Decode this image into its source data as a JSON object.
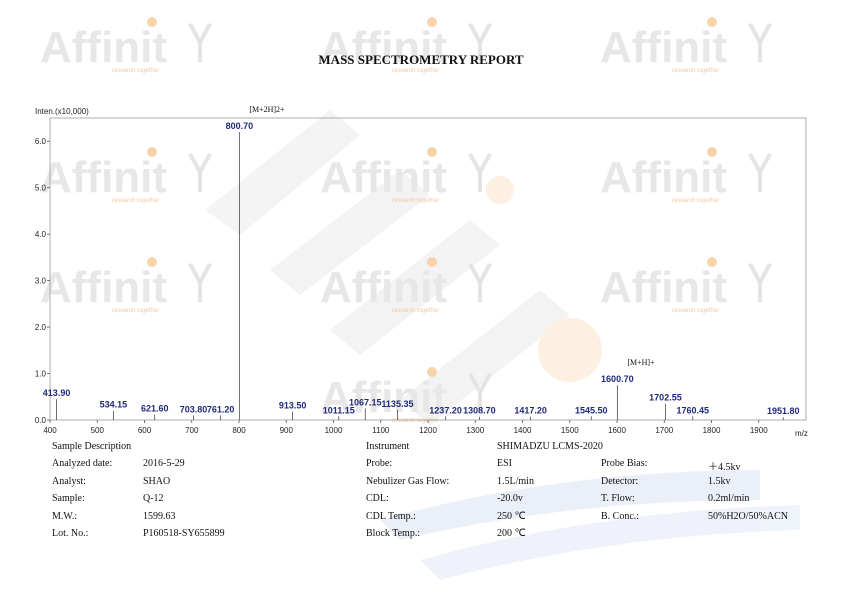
{
  "report": {
    "title": "MASS SPECTROMETRY REPORT",
    "watermark_text": "Affinit",
    "watermark_tagline": "research together"
  },
  "chart_data": {
    "type": "bar",
    "ylabel": "Inten.(x10,000)",
    "xlabel": "m/z",
    "xlim": [
      400,
      2000
    ],
    "ylim": [
      0,
      6.5
    ],
    "xticks": [
      400,
      500,
      600,
      700,
      800,
      900,
      1000,
      1100,
      1200,
      1300,
      1400,
      1500,
      1600,
      1700,
      1800,
      1900
    ],
    "yticks": [
      "0.0",
      "1.0",
      "2.0",
      "3.0",
      "4.0",
      "5.0",
      "6.0"
    ],
    "peaks": [
      {
        "mz": 413.9,
        "label": "413.90",
        "intensity": 0.45
      },
      {
        "mz": 534.15,
        "label": "534.15",
        "intensity": 0.2
      },
      {
        "mz": 621.6,
        "label": "621.60",
        "intensity": 0.12
      },
      {
        "mz": 703.8,
        "label": "703.80",
        "intensity": 0.1
      },
      {
        "mz": 761.2,
        "label": "761.20",
        "intensity": 0.1
      },
      {
        "mz": 800.7,
        "label": "800.70",
        "intensity": 6.2
      },
      {
        "mz": 913.5,
        "label": "913.50",
        "intensity": 0.18
      },
      {
        "mz": 1011.15,
        "label": "1011.15",
        "intensity": 0.08
      },
      {
        "mz": 1067.15,
        "label": "1067.15",
        "intensity": 0.25
      },
      {
        "mz": 1135.35,
        "label": "1135.35",
        "intensity": 0.22
      },
      {
        "mz": 1237.2,
        "label": "1237.20",
        "intensity": 0.08
      },
      {
        "mz": 1308.7,
        "label": "1308.70",
        "intensity": 0.07
      },
      {
        "mz": 1417.2,
        "label": "1417.20",
        "intensity": 0.07
      },
      {
        "mz": 1545.5,
        "label": "1545.50",
        "intensity": 0.08
      },
      {
        "mz": 1600.7,
        "label": "1600.70",
        "intensity": 0.75
      },
      {
        "mz": 1702.55,
        "label": "1702.55",
        "intensity": 0.35
      },
      {
        "mz": 1760.45,
        "label": "1760.45",
        "intensity": 0.08
      },
      {
        "mz": 1951.8,
        "label": "1951.80",
        "intensity": 0.06
      }
    ],
    "annotations": [
      {
        "text": "[M+2H]2+",
        "mz": 800.7
      },
      {
        "text": "[M+H]+",
        "mz": 1600.7
      }
    ],
    "grid": false
  },
  "sample_info": {
    "header": "Sample Description",
    "rows": [
      {
        "label": "Analyzed date:",
        "value": "2016-5-29"
      },
      {
        "label": "Analyst:",
        "value": "SHAO"
      },
      {
        "label": "Sample:",
        "value": "Q-12"
      },
      {
        "label": "M.W.:",
        "value": "1599.63"
      },
      {
        "label": "Lot. No.:",
        "value": "P160518-SY655899"
      }
    ]
  },
  "instrument_info": {
    "header_label": "Instrument",
    "header_value": "SHIMADZU LCMS-2020",
    "rows": [
      {
        "label": "Probe:",
        "value": "ESI"
      },
      {
        "label": "Nebulizer Gas Flow:",
        "value": "1.5L/min"
      },
      {
        "label": "CDL:",
        "value": "-20.0v"
      },
      {
        "label": "CDL Temp.:",
        "value": "250 ℃"
      },
      {
        "label": "Block Temp.:",
        "value": "200 ℃"
      }
    ]
  },
  "detector_info": {
    "rows": [
      {
        "label": "Probe Bias:",
        "value": "＋4.5kv"
      },
      {
        "label": "Detector:",
        "value": "1.5kv"
      },
      {
        "label": "T. Flow:",
        "value": "0.2ml/min"
      },
      {
        "label": "B. Conc.:",
        "value": "50%H2O/50%ACN"
      }
    ]
  }
}
